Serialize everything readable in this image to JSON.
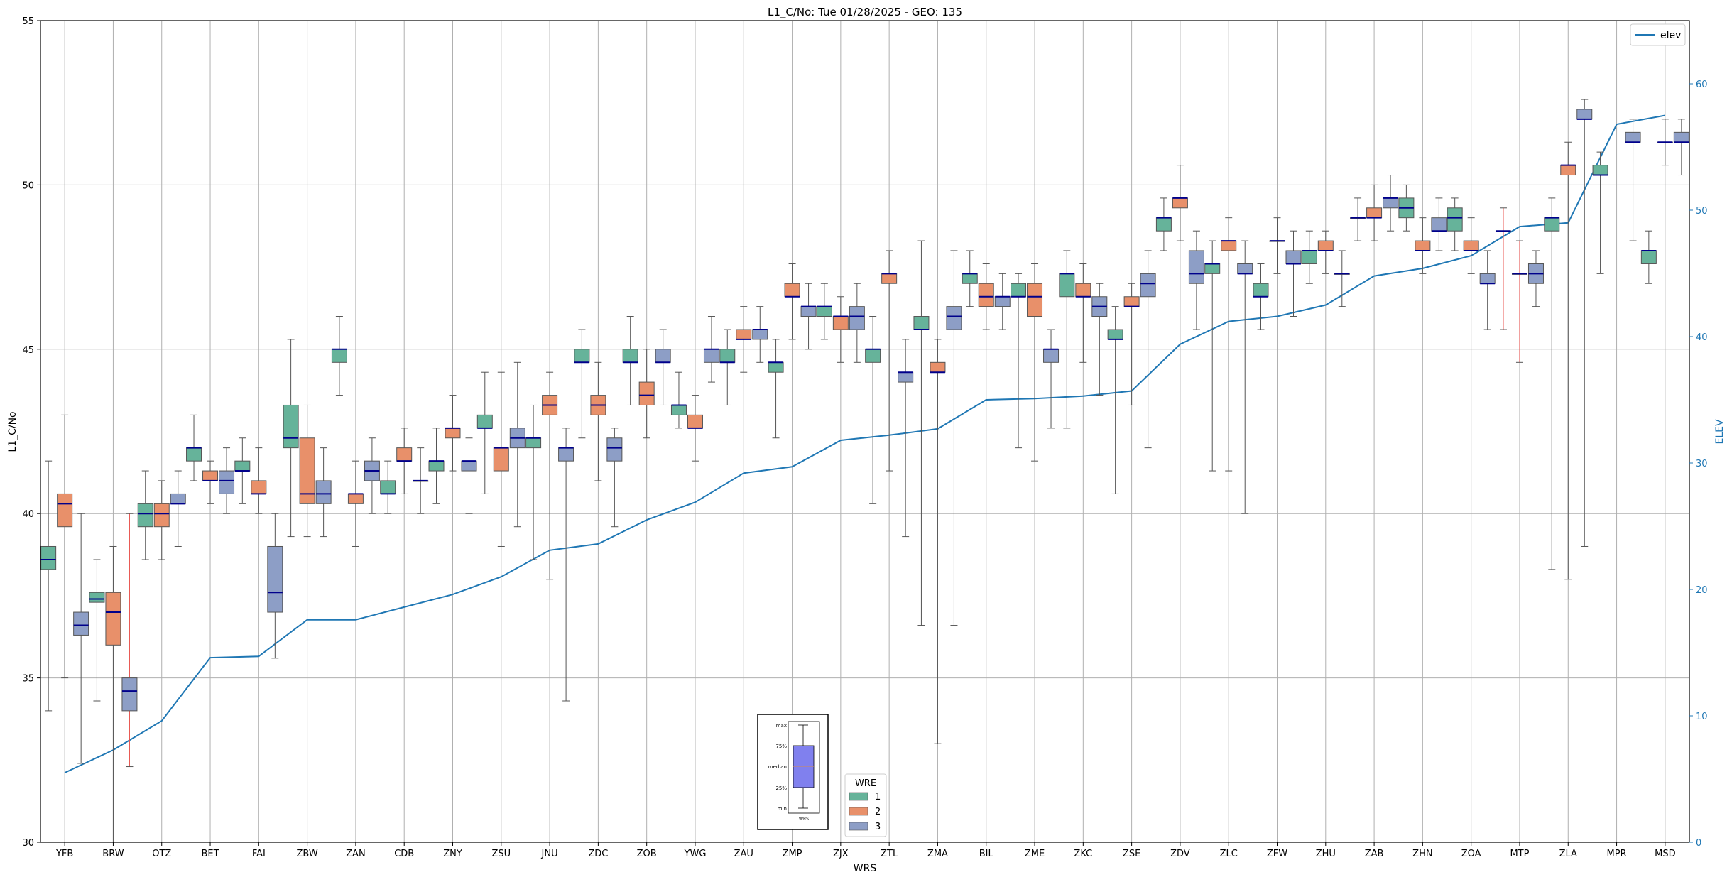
{
  "chart_data": {
    "type": "box",
    "title": "L1_C/No: Tue 01/28/2025 - GEO: 135",
    "xlabel": "WRS",
    "ylabel": "L1_C/No",
    "y2label": "ELEV",
    "ylim": [
      30,
      55
    ],
    "y2lim": [
      0,
      65
    ],
    "yticks": [
      30,
      35,
      40,
      45,
      50,
      55
    ],
    "y2ticks": [
      0,
      10,
      20,
      30,
      40,
      50,
      60
    ],
    "grid": true,
    "categories": [
      "YFB",
      "BRW",
      "OTZ",
      "BET",
      "FAI",
      "ZBW",
      "ZAN",
      "CDB",
      "ZNY",
      "ZSU",
      "JNU",
      "ZDC",
      "ZOB",
      "YWG",
      "ZAU",
      "ZMP",
      "ZJX",
      "ZTL",
      "ZMA",
      "BIL",
      "ZME",
      "ZKC",
      "ZSE",
      "ZDV",
      "ZLC",
      "ZFW",
      "ZHU",
      "ZAB",
      "ZHN",
      "ZOA",
      "MTP",
      "ZLA",
      "MPR",
      "MSD"
    ],
    "wre_colors": {
      "1": "#66b39a",
      "2": "#e8906a",
      "3": "#8d9ec6"
    },
    "median_color": "#00008b",
    "elev_color": "#1f77b4",
    "elev_legend": "elev",
    "wre_legend_title": "WRE",
    "wre_legend_labels": [
      "1",
      "2",
      "3"
    ],
    "key_labels": {
      "max": "max",
      "q3": "75%",
      "median": "median",
      "q1": "25%",
      "min": "min",
      "xlabel": "WRS"
    },
    "elev": [
      5.5,
      7.3,
      9.6,
      14.6,
      14.7,
      17.6,
      17.6,
      18.6,
      19.6,
      21.0,
      23.1,
      23.6,
      25.5,
      26.9,
      29.2,
      29.7,
      31.8,
      32.2,
      32.7,
      35.0,
      35.1,
      35.3,
      35.7,
      39.4,
      41.2,
      41.6,
      42.5,
      44.8,
      45.4,
      46.4,
      48.7,
      49.0,
      56.8,
      57.5
    ],
    "boxes": [
      {
        "station": "YFB",
        "wre": 1,
        "min": 34.0,
        "q1": 38.3,
        "median": 38.6,
        "q3": 39.0,
        "max": 41.6
      },
      {
        "station": "YFB",
        "wre": 2,
        "min": 35.0,
        "q1": 39.6,
        "median": 40.3,
        "q3": 40.6,
        "max": 43.0
      },
      {
        "station": "YFB",
        "wre": 3,
        "min": 32.4,
        "q1": 36.3,
        "median": 36.6,
        "q3": 37.0,
        "max": 40.0
      },
      {
        "station": "BRW",
        "wre": 1,
        "min": 34.3,
        "q1": 37.3,
        "median": 37.4,
        "q3": 37.6,
        "max": 38.6
      },
      {
        "station": "BRW",
        "wre": 2,
        "min": 30.0,
        "q1": 36.0,
        "median": 37.0,
        "q3": 37.6,
        "max": 39.0
      },
      {
        "station": "BRW",
        "wre": 3,
        "min": 32.3,
        "q1": 34.0,
        "median": 34.6,
        "q3": 35.0,
        "max": 40.0,
        "outlier": true
      },
      {
        "station": "OTZ",
        "wre": 1,
        "min": 38.6,
        "q1": 39.6,
        "median": 40.0,
        "q3": 40.3,
        "max": 41.3
      },
      {
        "station": "OTZ",
        "wre": 2,
        "min": 38.6,
        "q1": 39.6,
        "median": 40.0,
        "q3": 40.3,
        "max": 41.0
      },
      {
        "station": "OTZ",
        "wre": 3,
        "min": 39.0,
        "q1": 40.3,
        "median": 40.3,
        "q3": 40.6,
        "max": 41.3
      },
      {
        "station": "BET",
        "wre": 1,
        "min": 41.0,
        "q1": 41.6,
        "median": 42.0,
        "q3": 42.0,
        "max": 43.0
      },
      {
        "station": "BET",
        "wre": 2,
        "min": 40.3,
        "q1": 41.0,
        "median": 41.0,
        "q3": 41.3,
        "max": 41.6
      },
      {
        "station": "BET",
        "wre": 3,
        "min": 40.0,
        "q1": 40.6,
        "median": 41.0,
        "q3": 41.3,
        "max": 42.0
      },
      {
        "station": "FAI",
        "wre": 1,
        "min": 40.3,
        "q1": 41.3,
        "median": 41.3,
        "q3": 41.6,
        "max": 42.3
      },
      {
        "station": "FAI",
        "wre": 2,
        "min": 40.0,
        "q1": 40.6,
        "median": 40.6,
        "q3": 41.0,
        "max": 42.0
      },
      {
        "station": "FAI",
        "wre": 3,
        "min": 35.6,
        "q1": 37.0,
        "median": 37.6,
        "q3": 39.0,
        "max": 40.0
      },
      {
        "station": "ZBW",
        "wre": 1,
        "min": 39.3,
        "q1": 42.0,
        "median": 42.3,
        "q3": 43.3,
        "max": 45.3
      },
      {
        "station": "ZBW",
        "wre": 2,
        "min": 39.3,
        "q1": 40.3,
        "median": 40.6,
        "q3": 42.3,
        "max": 43.3
      },
      {
        "station": "ZBW",
        "wre": 3,
        "min": 39.3,
        "q1": 40.3,
        "median": 40.6,
        "q3": 41.0,
        "max": 42.0
      },
      {
        "station": "ZAN",
        "wre": 1,
        "min": 43.6,
        "q1": 44.6,
        "median": 45.0,
        "q3": 45.0,
        "max": 46.0
      },
      {
        "station": "ZAN",
        "wre": 2,
        "min": 39.0,
        "q1": 40.3,
        "median": 40.6,
        "q3": 40.6,
        "max": 41.6
      },
      {
        "station": "ZAN",
        "wre": 3,
        "min": 40.0,
        "q1": 41.0,
        "median": 41.3,
        "q3": 41.6,
        "max": 42.3
      },
      {
        "station": "CDB",
        "wre": 1,
        "min": 40.0,
        "q1": 40.6,
        "median": 40.6,
        "q3": 41.0,
        "max": 41.6
      },
      {
        "station": "CDB",
        "wre": 2,
        "min": 40.6,
        "q1": 41.6,
        "median": 41.6,
        "q3": 42.0,
        "max": 42.6
      },
      {
        "station": "CDB",
        "wre": 3,
        "min": 40.0,
        "q1": 41.0,
        "median": 41.0,
        "q3": 41.0,
        "max": 42.0
      },
      {
        "station": "ZNY",
        "wre": 1,
        "min": 40.3,
        "q1": 41.3,
        "median": 41.6,
        "q3": 41.6,
        "max": 42.6
      },
      {
        "station": "ZNY",
        "wre": 2,
        "min": 41.3,
        "q1": 42.3,
        "median": 42.6,
        "q3": 42.6,
        "max": 43.6
      },
      {
        "station": "ZNY",
        "wre": 3,
        "min": 40.0,
        "q1": 41.3,
        "median": 41.6,
        "q3": 41.6,
        "max": 42.3
      },
      {
        "station": "ZSU",
        "wre": 1,
        "min": 40.6,
        "q1": 42.6,
        "median": 42.6,
        "q3": 43.0,
        "max": 44.3
      },
      {
        "station": "ZSU",
        "wre": 2,
        "min": 39.0,
        "q1": 41.3,
        "median": 42.0,
        "q3": 42.0,
        "max": 44.3
      },
      {
        "station": "ZSU",
        "wre": 3,
        "min": 39.6,
        "q1": 42.0,
        "median": 42.3,
        "q3": 42.6,
        "max": 44.6
      },
      {
        "station": "JNU",
        "wre": 1,
        "min": 38.6,
        "q1": 42.0,
        "median": 42.3,
        "q3": 42.3,
        "max": 43.3
      },
      {
        "station": "JNU",
        "wre": 2,
        "min": 38.0,
        "q1": 43.0,
        "median": 43.3,
        "q3": 43.6,
        "max": 44.3
      },
      {
        "station": "JNU",
        "wre": 3,
        "min": 34.3,
        "q1": 41.6,
        "median": 42.0,
        "q3": 42.0,
        "max": 42.6
      },
      {
        "station": "ZDC",
        "wre": 1,
        "min": 42.3,
        "q1": 44.6,
        "median": 44.6,
        "q3": 45.0,
        "max": 45.6
      },
      {
        "station": "ZDC",
        "wre": 2,
        "min": 41.0,
        "q1": 43.0,
        "median": 43.3,
        "q3": 43.6,
        "max": 44.6
      },
      {
        "station": "ZDC",
        "wre": 3,
        "min": 39.6,
        "q1": 41.6,
        "median": 42.0,
        "q3": 42.3,
        "max": 42.6
      },
      {
        "station": "ZOB",
        "wre": 1,
        "min": 43.3,
        "q1": 44.6,
        "median": 44.6,
        "q3": 45.0,
        "max": 46.0
      },
      {
        "station": "ZOB",
        "wre": 2,
        "min": 42.3,
        "q1": 43.3,
        "median": 43.6,
        "q3": 44.0,
        "max": 45.0
      },
      {
        "station": "ZOB",
        "wre": 3,
        "min": 43.3,
        "q1": 44.6,
        "median": 44.6,
        "q3": 45.0,
        "max": 45.6
      },
      {
        "station": "YWG",
        "wre": 1,
        "min": 42.6,
        "q1": 43.0,
        "median": 43.3,
        "q3": 43.3,
        "max": 44.3
      },
      {
        "station": "YWG",
        "wre": 2,
        "min": 41.6,
        "q1": 42.6,
        "median": 42.6,
        "q3": 43.0,
        "max": 43.6
      },
      {
        "station": "YWG",
        "wre": 3,
        "min": 44.0,
        "q1": 44.6,
        "median": 45.0,
        "q3": 45.0,
        "max": 46.0
      },
      {
        "station": "ZAU",
        "wre": 1,
        "min": 43.3,
        "q1": 44.6,
        "median": 44.6,
        "q3": 45.0,
        "max": 45.6
      },
      {
        "station": "ZAU",
        "wre": 2,
        "min": 44.3,
        "q1": 45.3,
        "median": 45.3,
        "q3": 45.6,
        "max": 46.3
      },
      {
        "station": "ZAU",
        "wre": 3,
        "min": 44.6,
        "q1": 45.3,
        "median": 45.6,
        "q3": 45.6,
        "max": 46.3
      },
      {
        "station": "ZMP",
        "wre": 1,
        "min": 42.3,
        "q1": 44.3,
        "median": 44.6,
        "q3": 44.6,
        "max": 45.3
      },
      {
        "station": "ZMP",
        "wre": 2,
        "min": 45.3,
        "q1": 46.6,
        "median": 46.6,
        "q3": 47.0,
        "max": 47.6
      },
      {
        "station": "ZMP",
        "wre": 3,
        "min": 45.0,
        "q1": 46.0,
        "median": 46.3,
        "q3": 46.3,
        "max": 47.0
      },
      {
        "station": "ZJX",
        "wre": 1,
        "min": 45.3,
        "q1": 46.0,
        "median": 46.3,
        "q3": 46.3,
        "max": 47.0
      },
      {
        "station": "ZJX",
        "wre": 2,
        "min": 44.6,
        "q1": 45.6,
        "median": 46.0,
        "q3": 46.0,
        "max": 46.6
      },
      {
        "station": "ZJX",
        "wre": 3,
        "min": 44.6,
        "q1": 45.6,
        "median": 46.0,
        "q3": 46.3,
        "max": 47.0
      },
      {
        "station": "ZTL",
        "wre": 1,
        "min": 40.3,
        "q1": 44.6,
        "median": 45.0,
        "q3": 45.0,
        "max": 46.0
      },
      {
        "station": "ZTL",
        "wre": 2,
        "min": 41.3,
        "q1": 47.0,
        "median": 47.3,
        "q3": 47.3,
        "max": 48.0
      },
      {
        "station": "ZTL",
        "wre": 3,
        "min": 39.3,
        "q1": 44.0,
        "median": 44.3,
        "q3": 44.3,
        "max": 45.3
      },
      {
        "station": "ZMA",
        "wre": 1,
        "min": 36.6,
        "q1": 45.6,
        "median": 45.6,
        "q3": 46.0,
        "max": 48.3
      },
      {
        "station": "ZMA",
        "wre": 2,
        "min": 33.0,
        "q1": 44.3,
        "median": 44.3,
        "q3": 44.6,
        "max": 45.3
      },
      {
        "station": "ZMA",
        "wre": 3,
        "min": 36.6,
        "q1": 45.6,
        "median": 46.0,
        "q3": 46.3,
        "max": 48.0
      },
      {
        "station": "BIL",
        "wre": 1,
        "min": 46.3,
        "q1": 47.0,
        "median": 47.3,
        "q3": 47.3,
        "max": 48.0
      },
      {
        "station": "BIL",
        "wre": 2,
        "min": 45.6,
        "q1": 46.3,
        "median": 46.6,
        "q3": 47.0,
        "max": 47.6
      },
      {
        "station": "BIL",
        "wre": 3,
        "min": 45.6,
        "q1": 46.3,
        "median": 46.6,
        "q3": 46.6,
        "max": 47.3
      },
      {
        "station": "ZME",
        "wre": 1,
        "min": 42.0,
        "q1": 46.6,
        "median": 46.6,
        "q3": 47.0,
        "max": 47.3
      },
      {
        "station": "ZME",
        "wre": 2,
        "min": 41.6,
        "q1": 46.0,
        "median": 46.6,
        "q3": 47.0,
        "max": 47.6
      },
      {
        "station": "ZME",
        "wre": 3,
        "min": 42.6,
        "q1": 44.6,
        "median": 45.0,
        "q3": 45.0,
        "max": 45.6
      },
      {
        "station": "ZKC",
        "wre": 1,
        "min": 42.6,
        "q1": 46.6,
        "median": 47.3,
        "q3": 47.3,
        "max": 48.0
      },
      {
        "station": "ZKC",
        "wre": 2,
        "min": 44.6,
        "q1": 46.6,
        "median": 46.6,
        "q3": 47.0,
        "max": 47.6
      },
      {
        "station": "ZKC",
        "wre": 3,
        "min": 43.6,
        "q1": 46.0,
        "median": 46.3,
        "q3": 46.6,
        "max": 47.0
      },
      {
        "station": "ZSE",
        "wre": 1,
        "min": 40.6,
        "q1": 45.3,
        "median": 45.3,
        "q3": 45.6,
        "max": 46.3
      },
      {
        "station": "ZSE",
        "wre": 2,
        "min": 43.3,
        "q1": 46.3,
        "median": 46.3,
        "q3": 46.6,
        "max": 47.0
      },
      {
        "station": "ZSE",
        "wre": 3,
        "min": 42.0,
        "q1": 46.6,
        "median": 47.0,
        "q3": 47.3,
        "max": 48.0
      },
      {
        "station": "ZDV",
        "wre": 1,
        "min": 48.0,
        "q1": 48.6,
        "median": 49.0,
        "q3": 49.0,
        "max": 49.6
      },
      {
        "station": "ZDV",
        "wre": 2,
        "min": 48.3,
        "q1": 49.3,
        "median": 49.6,
        "q3": 49.6,
        "max": 50.6
      },
      {
        "station": "ZDV",
        "wre": 3,
        "min": 45.6,
        "q1": 47.0,
        "median": 47.3,
        "q3": 48.0,
        "max": 48.6
      },
      {
        "station": "ZLC",
        "wre": 1,
        "min": 41.3,
        "q1": 47.3,
        "median": 47.6,
        "q3": 47.6,
        "max": 48.3
      },
      {
        "station": "ZLC",
        "wre": 2,
        "min": 41.3,
        "q1": 48.0,
        "median": 48.3,
        "q3": 48.3,
        "max": 49.0
      },
      {
        "station": "ZLC",
        "wre": 3,
        "min": 40.0,
        "q1": 47.3,
        "median": 47.3,
        "q3": 47.6,
        "max": 48.3
      },
      {
        "station": "ZFW",
        "wre": 1,
        "min": 45.6,
        "q1": 46.6,
        "median": 46.6,
        "q3": 47.0,
        "max": 47.6
      },
      {
        "station": "ZFW",
        "wre": 2,
        "min": 47.3,
        "q1": 48.3,
        "median": 48.3,
        "q3": 48.3,
        "max": 49.0
      },
      {
        "station": "ZFW",
        "wre": 3,
        "min": 46.0,
        "q1": 47.6,
        "median": 47.6,
        "q3": 48.0,
        "max": 48.6
      },
      {
        "station": "ZHU",
        "wre": 1,
        "min": 47.0,
        "q1": 47.6,
        "median": 48.0,
        "q3": 48.0,
        "max": 48.6
      },
      {
        "station": "ZHU",
        "wre": 2,
        "min": 47.3,
        "q1": 48.0,
        "median": 48.0,
        "q3": 48.3,
        "max": 48.6
      },
      {
        "station": "ZHU",
        "wre": 3,
        "min": 46.3,
        "q1": 47.3,
        "median": 47.3,
        "q3": 47.3,
        "max": 48.0
      },
      {
        "station": "ZAB",
        "wre": 1,
        "min": 48.3,
        "q1": 49.0,
        "median": 49.0,
        "q3": 49.0,
        "max": 49.6
      },
      {
        "station": "ZAB",
        "wre": 2,
        "min": 48.3,
        "q1": 49.0,
        "median": 49.0,
        "q3": 49.3,
        "max": 50.0
      },
      {
        "station": "ZAB",
        "wre": 3,
        "min": 48.6,
        "q1": 49.3,
        "median": 49.6,
        "q3": 49.6,
        "max": 50.3
      },
      {
        "station": "ZHN",
        "wre": 1,
        "min": 48.6,
        "q1": 49.0,
        "median": 49.3,
        "q3": 49.6,
        "max": 50.0
      },
      {
        "station": "ZHN",
        "wre": 2,
        "min": 47.3,
        "q1": 48.0,
        "median": 48.0,
        "q3": 48.3,
        "max": 49.0
      },
      {
        "station": "ZHN",
        "wre": 3,
        "min": 48.0,
        "q1": 48.6,
        "median": 48.6,
        "q3": 49.0,
        "max": 49.6
      },
      {
        "station": "ZOA",
        "wre": 1,
        "min": 48.0,
        "q1": 48.6,
        "median": 49.0,
        "q3": 49.3,
        "max": 49.6
      },
      {
        "station": "ZOA",
        "wre": 2,
        "min": 47.3,
        "q1": 48.0,
        "median": 48.0,
        "q3": 48.3,
        "max": 49.0
      },
      {
        "station": "ZOA",
        "wre": 3,
        "min": 45.6,
        "q1": 47.0,
        "median": 47.0,
        "q3": 47.3,
        "max": 48.0
      },
      {
        "station": "MTP",
        "wre": 1,
        "min": 45.6,
        "q1": 48.6,
        "median": 48.6,
        "q3": 48.6,
        "max": 49.3,
        "outlier": true
      },
      {
        "station": "MTP",
        "wre": 2,
        "min": 44.6,
        "q1": 47.3,
        "median": 47.3,
        "q3": 47.3,
        "max": 48.3,
        "outlier": true
      },
      {
        "station": "MTP",
        "wre": 3,
        "min": 46.3,
        "q1": 47.0,
        "median": 47.3,
        "q3": 47.6,
        "max": 48.0
      },
      {
        "station": "ZLA",
        "wre": 1,
        "min": 38.3,
        "q1": 48.6,
        "median": 49.0,
        "q3": 49.0,
        "max": 49.6
      },
      {
        "station": "ZLA",
        "wre": 2,
        "min": 38.0,
        "q1": 50.3,
        "median": 50.6,
        "q3": 50.6,
        "max": 51.3
      },
      {
        "station": "ZLA",
        "wre": 3,
        "min": 39.0,
        "q1": 52.0,
        "median": 52.0,
        "q3": 52.3,
        "max": 52.6
      },
      {
        "station": "MPR",
        "wre": 1,
        "min": 47.3,
        "q1": 50.3,
        "median": 50.3,
        "q3": 50.6,
        "max": 51.0
      },
      {
        "station": "MPR",
        "wre": 3,
        "min": 48.3,
        "q1": 51.3,
        "median": 51.3,
        "q3": 51.6,
        "max": 52.0
      },
      {
        "station": "MSD",
        "wre": 1,
        "min": 47.0,
        "q1": 47.6,
        "median": 48.0,
        "q3": 48.0,
        "max": 48.6
      },
      {
        "station": "MSD",
        "wre": 2,
        "min": 50.6,
        "q1": 51.3,
        "median": 51.3,
        "q3": 51.3,
        "max": 52.0
      },
      {
        "station": "MSD",
        "wre": 3,
        "min": 50.3,
        "q1": 51.3,
        "median": 51.3,
        "q3": 51.6,
        "max": 52.0
      }
    ]
  }
}
